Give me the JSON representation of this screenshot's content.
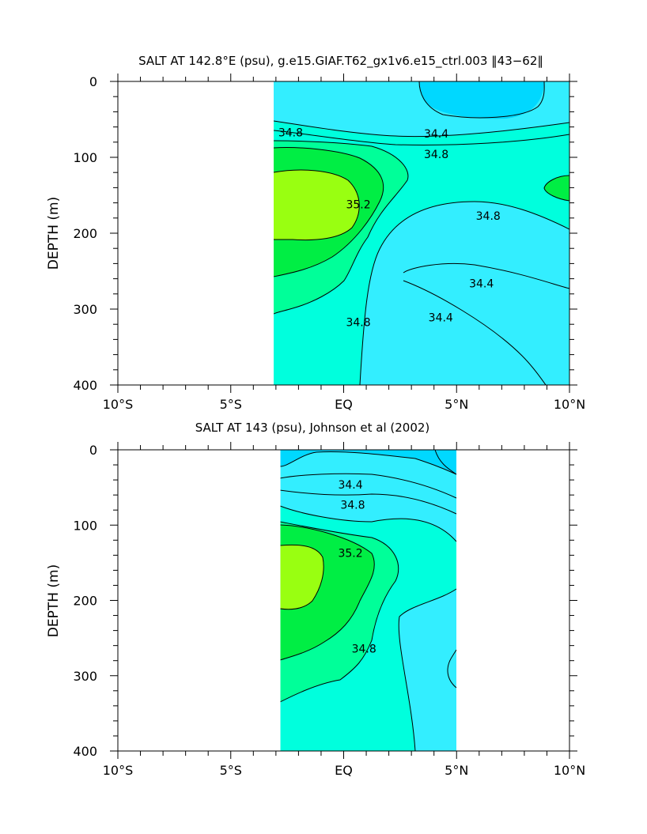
{
  "chart_data": [
    {
      "type": "contour",
      "title": "SALT AT 142.8°E (psu), g.e15.GIAF.T62_gx1v6.e15_ctrl.003 ‖43−62‖",
      "xlabel": "",
      "ylabel": "DEPTH (m)",
      "xlim": [
        -10,
        10
      ],
      "ylim": [
        400,
        0
      ],
      "xticks": [
        -10,
        -5,
        0,
        5,
        10
      ],
      "xtick_labels": [
        "10°S",
        "5°S",
        "EQ",
        "5°N",
        "10°N"
      ],
      "yticks": [
        0,
        100,
        200,
        300,
        400
      ],
      "ytick_labels": [
        "0",
        "100",
        "200",
        "300",
        "400"
      ],
      "data_extent_x": [
        -3.1,
        10
      ],
      "contour_levels": [
        34.4,
        34.6,
        34.8,
        35.0,
        35.2,
        35.4
      ],
      "contour_labels": [
        {
          "text": "34.8",
          "x": -2.35,
          "y": 68
        },
        {
          "text": "34.4",
          "x": 4.1,
          "y": 70
        },
        {
          "text": "34.8",
          "x": 4.1,
          "y": 97
        },
        {
          "text": "35.2",
          "x": 0.65,
          "y": 163
        },
        {
          "text": "34.8",
          "x": 6.4,
          "y": 178
        },
        {
          "text": "34.8",
          "x": 0.65,
          "y": 318
        },
        {
          "text": "34.4",
          "x": 6.1,
          "y": 267
        },
        {
          "text": "34.4",
          "x": 4.3,
          "y": 312
        }
      ],
      "colors": {
        "s344": "#00d8ff",
        "s346": "#33eeff",
        "s348": "#00ffdd",
        "s350": "#00ff99",
        "s352": "#00ee44",
        "s354": "#99ff11"
      }
    },
    {
      "type": "contour",
      "title": "SALT AT 143 (psu), Johnson et al (2002)",
      "xlabel": "",
      "ylabel": "DEPTH (m)",
      "xlim": [
        -10,
        10
      ],
      "ylim": [
        400,
        0
      ],
      "xticks": [
        -10,
        -5,
        0,
        5,
        10
      ],
      "xtick_labels": [
        "10°S",
        "5°S",
        "EQ",
        "5°N",
        "10°N"
      ],
      "yticks": [
        0,
        100,
        200,
        300,
        400
      ],
      "ytick_labels": [
        "0",
        "100",
        "200",
        "300",
        "400"
      ],
      "data_extent_x": [
        -2.8,
        5
      ],
      "contour_levels": [
        34.4,
        34.6,
        34.8,
        35.0,
        35.2,
        35.4
      ],
      "contour_labels": [
        {
          "text": "34.4",
          "x": 0.3,
          "y": 47
        },
        {
          "text": "34.8",
          "x": 0.4,
          "y": 74
        },
        {
          "text": "35.2",
          "x": 0.3,
          "y": 138
        },
        {
          "text": "34.8",
          "x": 0.9,
          "y": 265
        }
      ],
      "colors": {
        "s344": "#00d8ff",
        "s346": "#33eeff",
        "s348": "#00ffdd",
        "s350": "#00ff99",
        "s352": "#00ee44",
        "s354": "#99ff11"
      }
    }
  ]
}
